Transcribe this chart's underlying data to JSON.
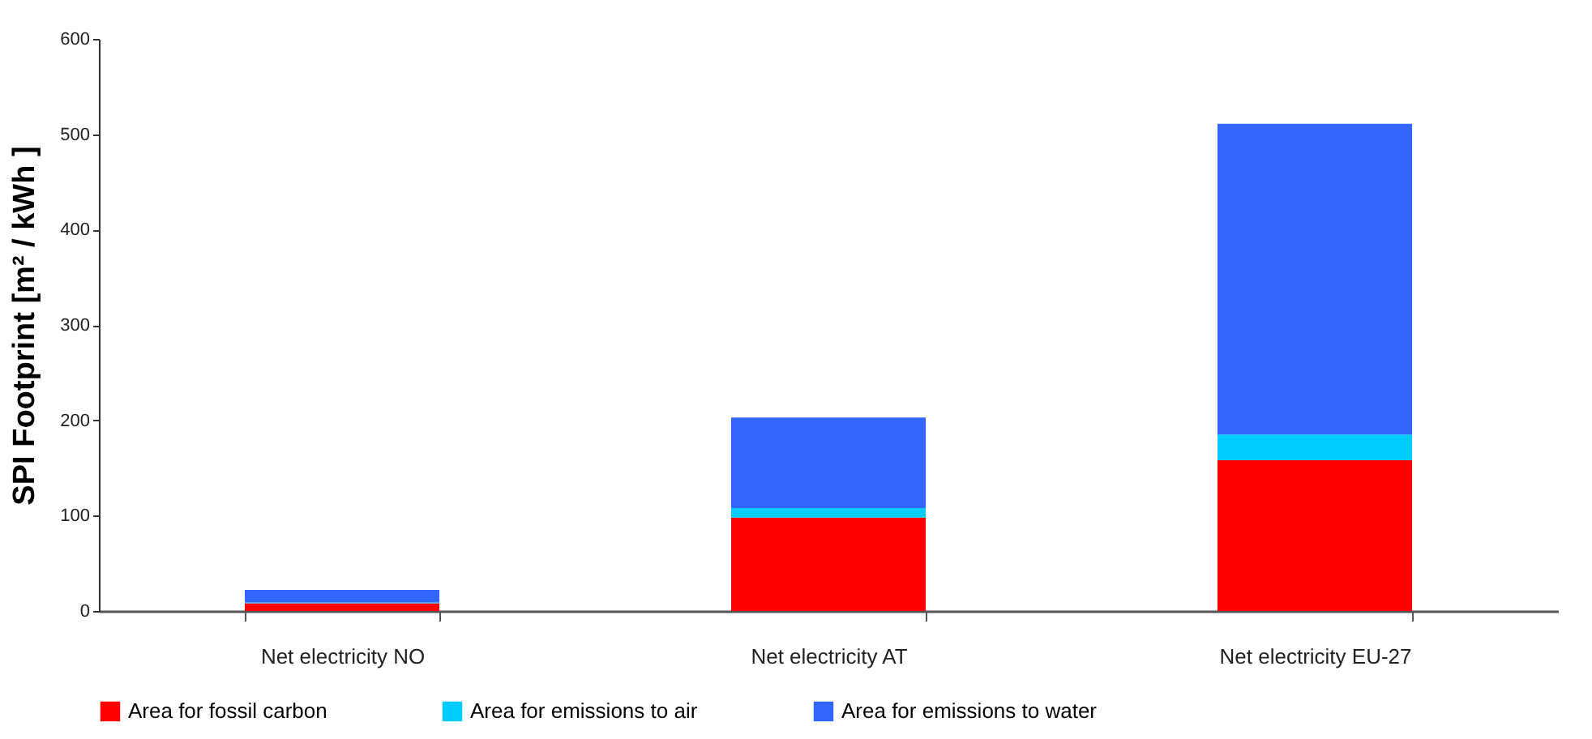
{
  "chart_data": {
    "type": "bar",
    "stacked": true,
    "ylabel": "SPI Footprint [m² / kWh ]",
    "categories": [
      "Net electricity NO",
      "Net electricity AT",
      "Net electricity EU-27"
    ],
    "series": [
      {
        "name": "Area for fossil carbon",
        "color": "#ff0000",
        "values": [
          8,
          98,
          158
        ]
      },
      {
        "name": "Area for emissions to air",
        "color": "#00ccff",
        "values": [
          1,
          10,
          27
        ]
      },
      {
        "name": "Area for emissions to water",
        "color": "#3366ff",
        "values": [
          13,
          95,
          326
        ]
      }
    ],
    "ylim": [
      0,
      600
    ],
    "yticks": [
      0,
      100,
      200,
      300,
      400,
      500,
      600
    ],
    "grid": false,
    "legend": "bottom"
  }
}
